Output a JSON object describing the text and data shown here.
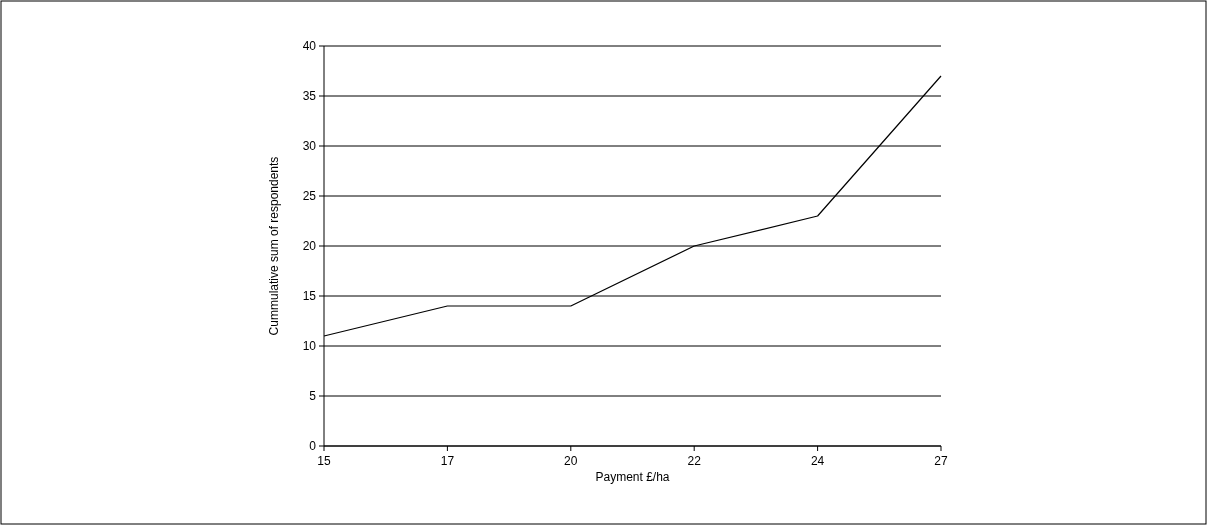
{
  "chart_data": {
    "type": "line",
    "xlabel": "Payment £/ha",
    "ylabel": "Cummulative sum of respondents",
    "categories": [
      "15",
      "17",
      "20",
      "22",
      "24",
      "27"
    ],
    "values": [
      11,
      14,
      14,
      20,
      23,
      37
    ],
    "color": "#000000",
    "ylim": [
      0,
      40
    ],
    "yticks": [
      0,
      5,
      10,
      15,
      20,
      25,
      30,
      35,
      40
    ],
    "grid": "y",
    "marker": "none",
    "line_style": "solid"
  }
}
